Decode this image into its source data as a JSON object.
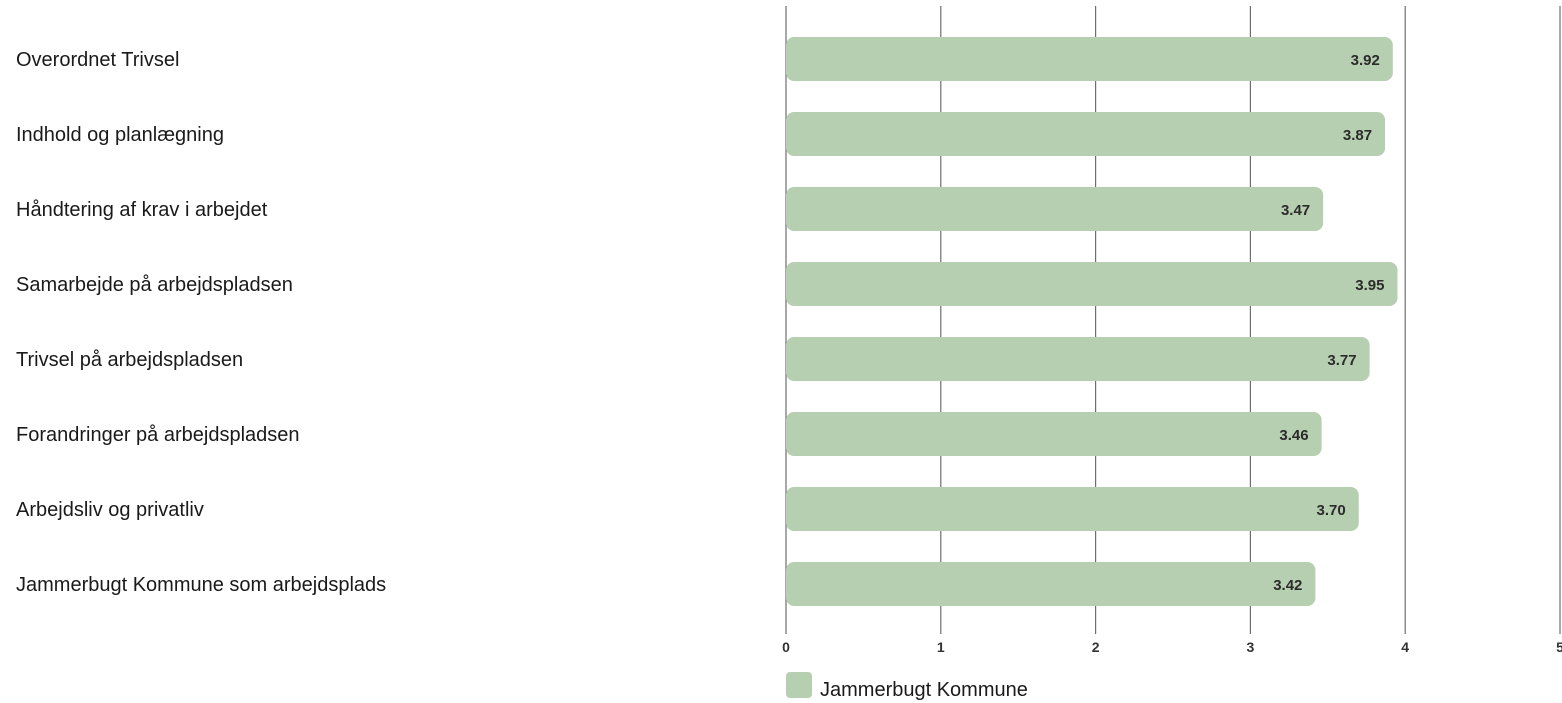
{
  "chart_data": {
    "type": "bar",
    "orientation": "horizontal",
    "categories": [
      "Overordnet Trivsel",
      "Indhold og planlægning",
      "Håndtering af krav i arbejdet",
      "Samarbejde på arbejdspladsen",
      "Trivsel på arbejdspladsen",
      "Forandringer på arbejdspladsen",
      "Arbejdsliv og privatliv",
      "Jammerbugt Kommune som arbejdsplads"
    ],
    "series": [
      {
        "name": "Jammerbugt Kommune",
        "color": "#b7cfb1",
        "values": [
          3.92,
          3.87,
          3.47,
          3.95,
          3.77,
          3.46,
          3.7,
          3.42
        ],
        "labels": [
          "3.92",
          "3.87",
          "3.47",
          "3.95",
          "3.77",
          "3.46",
          "3.70",
          "3.42"
        ]
      }
    ],
    "x_ticks": [
      "0",
      "1",
      "2",
      "3",
      "4",
      "5"
    ],
    "xlim": [
      0,
      5
    ],
    "grid": true,
    "legend_position": "bottom-left"
  }
}
